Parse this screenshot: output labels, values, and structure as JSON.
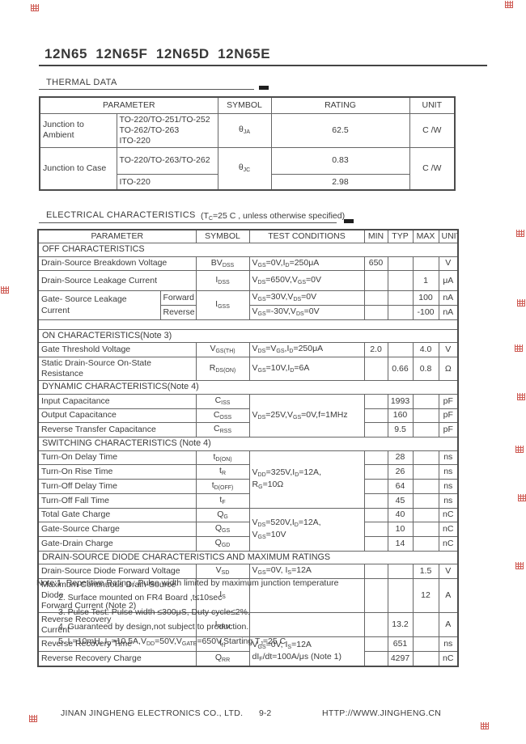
{
  "page": {
    "title": "12N65 12N65F 12N65D 12N65E",
    "footer": {
      "company": "JINAN JINGHENG ELECTRONICS CO., LTD.",
      "page_number": "9-2",
      "website": "HTTP://WWW.JINGHENG.CN"
    }
  },
  "thermal": {
    "section_title": "THERMAL DATA",
    "headers": {
      "parameter": "PARAMETER",
      "symbol": "SYMBOL",
      "rating": "RATING",
      "unit": "UNIT"
    },
    "rows": [
      {
        "param": "Junction to Ambient",
        "pkg": "TO-220/TO-251/TO-252\nTO-262/TO-263\nITO-220",
        "symbol": "θ_{JA}",
        "rating": "62.5",
        "unit": "C /W"
      },
      {
        "param": "Junction to Case",
        "pkg": "TO-220/TO-263/TO-262",
        "symbol": "θ_{JC}",
        "rating": "0.83",
        "unit": "C /W"
      },
      {
        "pkg": "ITO-220",
        "rating": "2.98"
      }
    ]
  },
  "electrical": {
    "section_title": "ELECTRICAL CHARACTERISTICS",
    "condition_note": "(T_{C}=25 C , unless otherwise specified)",
    "headers": {
      "parameter": "PARAMETER",
      "symbol": "SYMBOL",
      "test_conditions": "TEST CONDITIONS",
      "min": "MIN",
      "typ": "TYP",
      "max": "MAX",
      "unit": "UNIT"
    },
    "rows": [
      {
        "label": "OFF CHARACTERISTICS"
      },
      {
        "param": "Drain-Source Breakdown Voltage",
        "symbol": "BV_{DSS}",
        "cond": "V_{GS}=0V,I_{D}=250μA",
        "min": "650",
        "unit": "V"
      },
      {
        "param": "Drain-Source Leakage Current",
        "symbol": "I_{DSS}",
        "cond": "V_{DS}=650V,V_{GS}=0V",
        "max": "1",
        "unit": "μA"
      },
      {
        "param": "Gate- Source Leakage Current",
        "sub": "Forward",
        "symbol": "I_{GSS}",
        "cond": "V_{GS}=30V,V_{DS}=0V",
        "max": "100",
        "unit": "nA"
      },
      {
        "sub": "Reverse",
        "cond": "V_{GS}=-30V,V_{DS}=0V",
        "max": "-100",
        "unit": "nA"
      },
      {
        "label": ""
      },
      {
        "label": "ON CHARACTERISTICS(Note 3)"
      },
      {
        "param": "Gate Threshold Voltage",
        "symbol": "V_{GS(TH)}",
        "cond": "V_{DS}=V_{GS},I_{D}=250μA",
        "min": "2.0",
        "max": "4.0",
        "unit": "V"
      },
      {
        "param": "Static Drain-Source On-State Resistance",
        "symbol": "R_{DS(ON)}",
        "cond": "V_{GS}=10V,I_{D}=6A",
        "typ": "0.66",
        "max": "0.8",
        "unit": "Ω"
      },
      {
        "label": "DYNAMIC CHARACTERISTICS(Note 4)"
      },
      {
        "param": "Input Capacitance",
        "symbol": "C_{ISS}",
        "cond": "V_{DS}=25V,V_{GS}=0V,f=1MHz",
        "typ": "1993",
        "unit": "pF"
      },
      {
        "param": "Output Capacitance",
        "symbol": "C_{OSS}",
        "typ": "160",
        "unit": "pF"
      },
      {
        "param": "Reverse Transfer Capacitance",
        "symbol": "C_{RSS}",
        "typ": "9.5",
        "unit": "pF"
      },
      {
        "label": "SWITCHING CHARACTERISTICS (Note 4)"
      },
      {
        "param": "Turn-On Delay Time",
        "symbol": "t_{D(ON)}",
        "cond": "V_{DD}=325V,I_{D}=12A,\nR_{G}=10Ω",
        "typ": "28",
        "unit": "ns"
      },
      {
        "param": "Turn-On Rise Time",
        "symbol": "t_{R}",
        "typ": "26",
        "unit": "ns"
      },
      {
        "param": "Turn-Off Delay Time",
        "symbol": "t_{D(OFF)}",
        "typ": "64",
        "unit": "ns"
      },
      {
        "param": "Turn-Off Fall Time",
        "symbol": "t_{F}",
        "typ": "45",
        "unit": "ns"
      },
      {
        "param": "Total Gate Charge",
        "symbol": "Q_{G}",
        "cond": "V_{DS}=520V,I_{D}=12A,\nV_{GS}=10V",
        "typ": "40",
        "unit": "nC"
      },
      {
        "param": "Gate-Source Charge",
        "symbol": "Q_{GS}",
        "typ": "10",
        "unit": "nC"
      },
      {
        "param": "Gate-Drain Charge",
        "symbol": "Q_{GD}",
        "typ": "14",
        "unit": "nC"
      },
      {
        "label": "DRAIN-SOURCE DIODE CHARACTERISTICS AND MAXIMUM RATINGS"
      },
      {
        "param": "Drain-Source Diode Forward Voltage",
        "symbol": "V_{SD}",
        "cond": "V_{GS}=0V, I_{S}=12A",
        "max": "1.5",
        "unit": "V"
      },
      {
        "param": "Maximum Continuous Drain-Source Diode\nForward Current (Note 2)",
        "symbol": "I_{S}",
        "max": "12",
        "unit": "A"
      },
      {
        "param": "Reverse Recovery\nCurrent",
        "symbol": "I_{RRM}",
        "typ": "13.2",
        "unit": "A"
      },
      {
        "param": "Reverse Recovery Time",
        "symbol": "t_{rr}",
        "cond": "V_{GS}=0V, I_{S}=12A\ndI_{F}/dt=100A/μs (Note 1)",
        "typ": "651",
        "unit": "ns"
      },
      {
        "param": "Reverse Recovery Charge",
        "symbol": "Q_{RR}",
        "typ": "4297",
        "unit": "nC"
      }
    ]
  },
  "notes": {
    "prefix": "Note:",
    "items": [
      "1. Repetitive Rating : Pulse width limited by maximum junction temperature",
      "2. Surface mounted on FR4 Board ,t≤10sec",
      "3. Pulse Test: Pulse width ≤300μS, Duty cycle≤2%.",
      "4. Guaranteed by design,not subject to production.",
      "5. L=10mH, I_{D}=10.5A,V_{DD}=50V,V_{GATE}=650V,Starting T_{J}=25 C"
    ]
  },
  "decorations": {
    "red_stamp_color": "#c23028",
    "red_stamp_count": 12
  }
}
